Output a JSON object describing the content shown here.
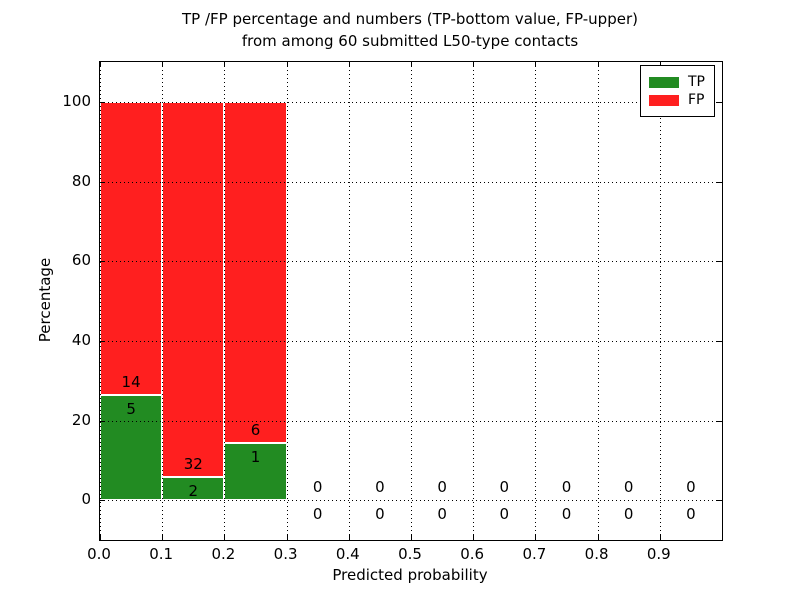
{
  "figure": {
    "title_line1": "TP /FP percentage and numbers (TP-bottom value, FP-upper)",
    "title_line2": "from among 60 submitted L50-type contacts"
  },
  "chart_data": {
    "type": "bar",
    "stacked": true,
    "normalized_to_percent": true,
    "title": "TP /FP percentage and numbers (TP-bottom value, FP-upper)\nfrom among 60 submitted L50-type contacts",
    "xlabel": "Predicted probability",
    "ylabel": "Percentage",
    "xlim": [
      0,
      1
    ],
    "ylim": [
      -10,
      110
    ],
    "xtick_labels": [
      "0.0",
      "0.1",
      "0.2",
      "0.3",
      "0.4",
      "0.5",
      "0.6",
      "0.7",
      "0.8",
      "0.9"
    ],
    "ytick_labels": [
      "0",
      "20",
      "40",
      "60",
      "80",
      "100"
    ],
    "grid": {
      "visible": true,
      "style": "dotted",
      "color": "#000000"
    },
    "legend": {
      "position": "upper-right",
      "entries": [
        {
          "label": "TP",
          "color": "#228B22"
        },
        {
          "label": "FP",
          "color": "#FF1F1F"
        }
      ]
    },
    "total_submitted": 60,
    "bin_width": 0.1,
    "bin_starts": [
      0.0,
      0.1,
      0.2,
      0.3,
      0.4,
      0.5,
      0.6,
      0.7,
      0.8,
      0.9
    ],
    "series": [
      {
        "name": "TP",
        "color": "#228B22",
        "counts": [
          5,
          2,
          1,
          0,
          0,
          0,
          0,
          0,
          0,
          0
        ]
      },
      {
        "name": "FP",
        "color": "#FF1F1F",
        "counts": [
          14,
          32,
          6,
          0,
          0,
          0,
          0,
          0,
          0,
          0
        ]
      }
    ],
    "tp_percentages": [
      26.3,
      5.9,
      14.3,
      0,
      0,
      0,
      0,
      0,
      0,
      0
    ],
    "fp_percentages": [
      73.7,
      94.1,
      85.7,
      0,
      0,
      0,
      0,
      0,
      0,
      0
    ]
  },
  "colors": {
    "background": "#FFFFFF",
    "text": "#000000",
    "tp": "#228B22",
    "fp": "#FF1F1F",
    "bar_edge": "#FFFFFF"
  }
}
